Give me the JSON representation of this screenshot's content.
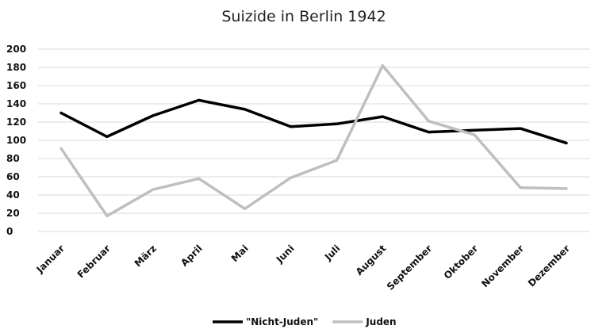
{
  "chart_data": {
    "type": "line",
    "title": "Suizide in Berlin 1942",
    "xlabel": "",
    "ylabel": "",
    "categories": [
      "Januar",
      "Februar",
      "März",
      "April",
      "Mai",
      "Juni",
      "Juli",
      "August",
      "September",
      "Oktober",
      "November",
      "Dezember"
    ],
    "series": [
      {
        "name": "\"Nicht-Juden\"",
        "color": "#000000",
        "values": [
          130,
          104,
          127,
          144,
          134,
          115,
          118,
          126,
          109,
          111,
          113,
          97
        ]
      },
      {
        "name": "Juden",
        "color": "#bfbfbf",
        "values": [
          91,
          17,
          46,
          58,
          25,
          59,
          78,
          182,
          121,
          106,
          48,
          47
        ]
      }
    ],
    "ylim": [
      0,
      200
    ],
    "yticks": [
      0,
      20,
      40,
      60,
      80,
      100,
      120,
      140,
      160,
      180,
      200
    ],
    "grid": true,
    "legend": "bottom"
  }
}
